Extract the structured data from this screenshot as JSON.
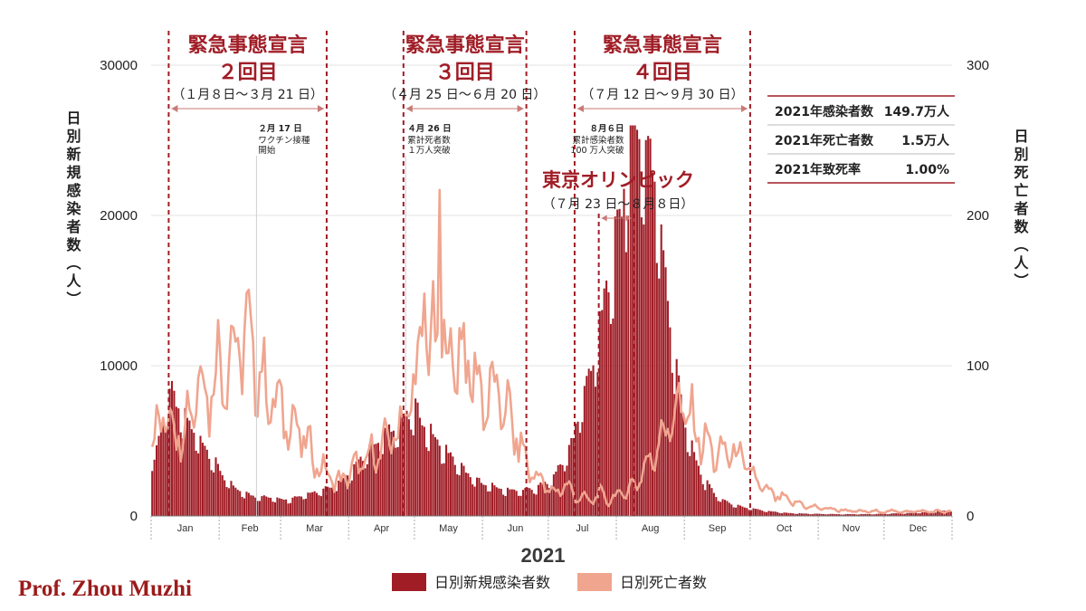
{
  "chart_data": {
    "type": "bar+line",
    "xlabel": "2021",
    "ylabel_left": "日別新規感染者数（人）",
    "ylabel_right": "日別死亡者数（人）",
    "ylim_left": [
      0,
      30000
    ],
    "ylim_right": [
      0,
      300
    ],
    "yticks_left": [
      "0",
      "10000",
      "20000",
      "30000"
    ],
    "yticks_right": [
      "0",
      "100",
      "200",
      "300"
    ],
    "months": [
      "Jan",
      "Feb",
      "Mar",
      "Apr",
      "May",
      "Jun",
      "Jul",
      "Aug",
      "Sep",
      "Oct",
      "Nov",
      "Dec"
    ],
    "grid": true,
    "legend_position": "bottom-center",
    "colors": {
      "cases": "#a01d26",
      "deaths": "#f0a58f",
      "accent": "#a01d26"
    },
    "series": [
      {
        "name": "日別新規感染者数",
        "type": "bar",
        "axis": "left",
        "anchors": [
          [
            1,
            3500
          ],
          [
            3,
            5000
          ],
          [
            6,
            7000
          ],
          [
            9,
            7800
          ],
          [
            13,
            6500
          ],
          [
            17,
            5800
          ],
          [
            22,
            4800
          ],
          [
            27,
            3800
          ],
          [
            32,
            2600
          ],
          [
            38,
            1700
          ],
          [
            45,
            1300
          ],
          [
            55,
            1150
          ],
          [
            62,
            1050
          ],
          [
            70,
            1400
          ],
          [
            78,
            1700
          ],
          [
            85,
            2100
          ],
          [
            92,
            3000
          ],
          [
            98,
            4200
          ],
          [
            104,
            5000
          ],
          [
            110,
            5600
          ],
          [
            116,
            6400
          ],
          [
            120,
            6800
          ],
          [
            124,
            5800
          ],
          [
            130,
            4700
          ],
          [
            138,
            3500
          ],
          [
            145,
            2500
          ],
          [
            152,
            2000
          ],
          [
            160,
            1700
          ],
          [
            168,
            1600
          ],
          [
            175,
            1800
          ],
          [
            181,
            2200
          ],
          [
            187,
            3400
          ],
          [
            192,
            5000
          ],
          [
            197,
            8000
          ],
          [
            202,
            10500
          ],
          [
            206,
            13500
          ],
          [
            210,
            16500
          ],
          [
            214,
            19500
          ],
          [
            216,
            22000
          ],
          [
            218,
            25000
          ],
          [
            220,
            25500
          ],
          [
            223,
            24000
          ],
          [
            226,
            23000
          ],
          [
            229,
            21500
          ],
          [
            232,
            17500
          ],
          [
            235,
            14000
          ],
          [
            238,
            10000
          ],
          [
            241,
            7500
          ],
          [
            244,
            5200
          ],
          [
            248,
            3400
          ],
          [
            252,
            2200
          ],
          [
            257,
            1300
          ],
          [
            263,
            800
          ],
          [
            270,
            550
          ],
          [
            280,
            320
          ],
          [
            290,
            180
          ],
          [
            300,
            140
          ],
          [
            315,
            110
          ],
          [
            330,
            120
          ],
          [
            345,
            180
          ],
          [
            355,
            250
          ],
          [
            364,
            380
          ]
        ],
        "peak": 25992
      },
      {
        "name": "日別死亡者数",
        "type": "line",
        "axis": "right",
        "anchors": [
          [
            1,
            50
          ],
          [
            5,
            70
          ],
          [
            10,
            62
          ],
          [
            14,
            55
          ],
          [
            18,
            78
          ],
          [
            22,
            95
          ],
          [
            26,
            82
          ],
          [
            30,
            100
          ],
          [
            34,
            105
          ],
          [
            38,
            110
          ],
          [
            42,
            118
          ],
          [
            46,
            110
          ],
          [
            50,
            88
          ],
          [
            54,
            80
          ],
          [
            58,
            70
          ],
          [
            62,
            66
          ],
          [
            66,
            58
          ],
          [
            70,
            48
          ],
          [
            74,
            38
          ],
          [
            78,
            30
          ],
          [
            82,
            25
          ],
          [
            86,
            22
          ],
          [
            90,
            30
          ],
          [
            95,
            33
          ],
          [
            100,
            40
          ],
          [
            105,
            45
          ],
          [
            110,
            55
          ],
          [
            114,
            62
          ],
          [
            118,
            80
          ],
          [
            121,
            90
          ],
          [
            124,
            140
          ],
          [
            126,
            100
          ],
          [
            129,
            120
          ],
          [
            132,
            110
          ],
          [
            136,
            105
          ],
          [
            140,
            112
          ],
          [
            144,
            100
          ],
          [
            148,
            88
          ],
          [
            152,
            78
          ],
          [
            156,
            82
          ],
          [
            160,
            75
          ],
          [
            164,
            60
          ],
          [
            168,
            45
          ],
          [
            172,
            30
          ],
          [
            176,
            26
          ],
          [
            180,
            18
          ],
          [
            184,
            15
          ],
          [
            188,
            22
          ],
          [
            192,
            14
          ],
          [
            196,
            12
          ],
          [
            200,
            10
          ],
          [
            204,
            15
          ],
          [
            208,
            10
          ],
          [
            212,
            14
          ],
          [
            216,
            16
          ],
          [
            220,
            22
          ],
          [
            224,
            30
          ],
          [
            228,
            40
          ],
          [
            232,
            55
          ],
          [
            236,
            62
          ],
          [
            240,
            72
          ],
          [
            244,
            68
          ],
          [
            248,
            56
          ],
          [
            252,
            48
          ],
          [
            256,
            42
          ],
          [
            260,
            40
          ],
          [
            264,
            44
          ],
          [
            268,
            38
          ],
          [
            272,
            30
          ],
          [
            276,
            22
          ],
          [
            280,
            16
          ],
          [
            290,
            10
          ],
          [
            300,
            6
          ],
          [
            320,
            3
          ],
          [
            340,
            3
          ],
          [
            364,
            3
          ]
        ],
        "spikes": [
          [
            124,
            148
          ],
          [
            131,
            217
          ]
        ]
      }
    ],
    "emergency_declarations": [
      {
        "title": "緊急事態宣言",
        "round": "２回目",
        "dates": "（１月８日〜３月 21 日）",
        "start_day": 8,
        "end_day": 80
      },
      {
        "title": "緊急事態宣言",
        "round": "３回目",
        "dates": "（４月 25 日〜６月 20 日）",
        "start_day": 115,
        "end_day": 171
      },
      {
        "title": "緊急事態宣言",
        "round": "４回目",
        "dates": "（７月 12 日〜９月 30 日）",
        "start_day": 193,
        "end_day": 273
      }
    ],
    "olympics": {
      "title": "東京オリンピック",
      "dates": "（７月 23 日〜８月８日）",
      "start_day": 204,
      "end_day": 220
    },
    "annotations": [
      {
        "date": "２月 17 日",
        "lines": [
          "ワクチン接種",
          "開始"
        ],
        "day": 48
      },
      {
        "date": "４月 26 日",
        "lines": [
          "累計死者数",
          "１万人突破"
        ],
        "day": 116
      },
      {
        "date": "８月６日",
        "lines": [
          "累計感染者数",
          "100 万人突破"
        ],
        "day": 218
      }
    ],
    "summary_table": [
      {
        "label": "2021年感染者数",
        "value": "149.7万人"
      },
      {
        "label": "2021年死亡者数",
        "value": "1.5万人"
      },
      {
        "label": "2021年致死率",
        "value": "1.00%"
      }
    ],
    "legend": [
      "日別新規感染者数",
      "日別死亡者数"
    ]
  },
  "credit": "Prof. Zhou Muzhi"
}
